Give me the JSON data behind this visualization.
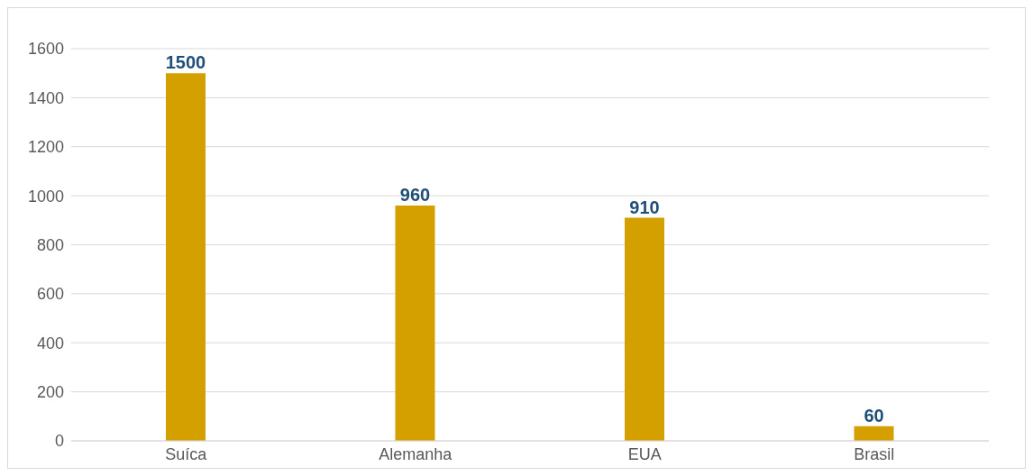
{
  "chart_data": {
    "type": "bar",
    "categories": [
      "Suíca",
      "Alemanha",
      "EUA",
      "Brasil"
    ],
    "values": [
      1500,
      960,
      910,
      60
    ],
    "color": "#d4a000",
    "ylim": [
      0,
      1600
    ],
    "yticks": [
      0,
      200,
      400,
      600,
      800,
      1000,
      1200,
      1400,
      1600
    ],
    "grid": "y",
    "data_labels": true
  }
}
